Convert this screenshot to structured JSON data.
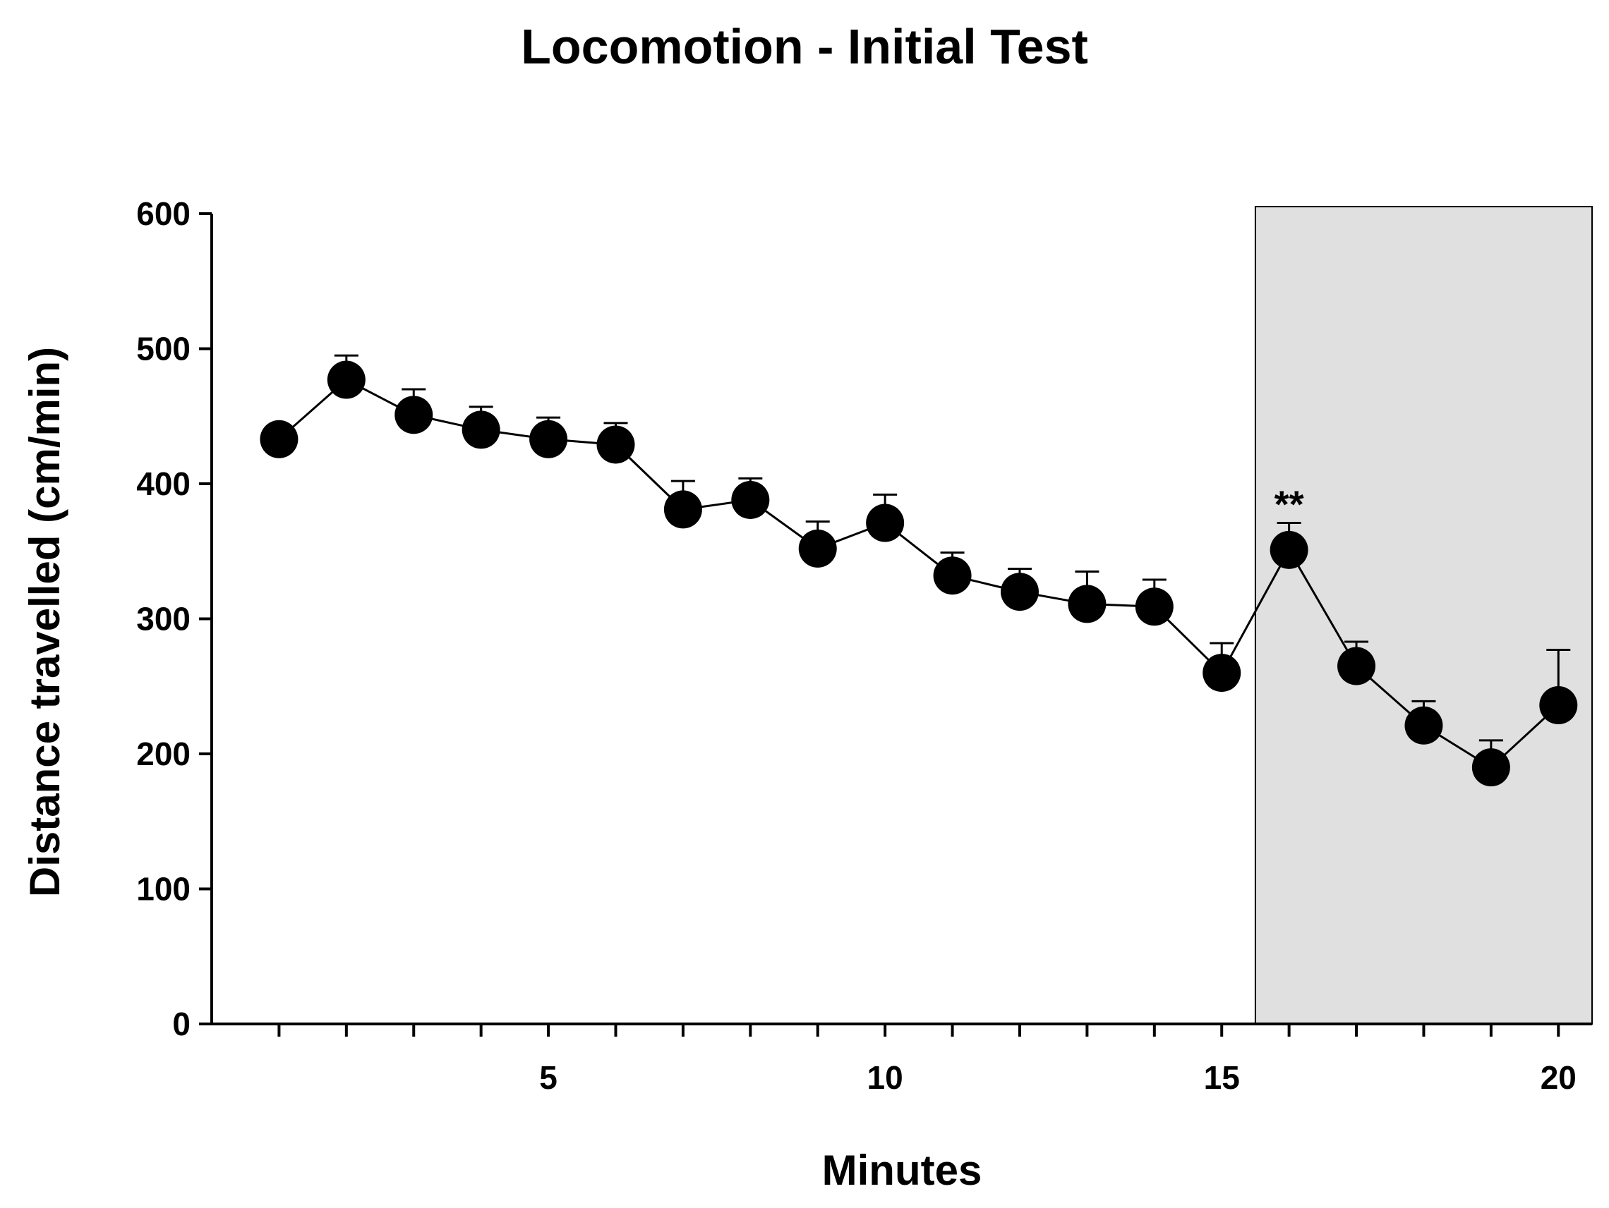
{
  "chart_data": {
    "type": "line",
    "title": "Locomotion -  Initial Test",
    "xlabel": "Minutes",
    "ylabel": "Distance travelled (cm/min)",
    "xlim": [
      0,
      20.5
    ],
    "ylim": [
      0,
      600
    ],
    "x_ticks": [
      1,
      2,
      3,
      4,
      5,
      6,
      7,
      8,
      9,
      10,
      11,
      12,
      13,
      14,
      15,
      16,
      17,
      18,
      19,
      20
    ],
    "x_tick_labels": [
      {
        "value": 5,
        "label": "5"
      },
      {
        "value": 10,
        "label": "10"
      },
      {
        "value": 15,
        "label": "15"
      },
      {
        "value": 20,
        "label": "20"
      }
    ],
    "y_ticks": [
      0,
      100,
      200,
      300,
      400,
      500,
      600
    ],
    "y_tick_labels": [
      "0",
      "100",
      "200",
      "300",
      "400",
      "500",
      "600"
    ],
    "grid": false,
    "series": [
      {
        "name": "Distance travelled",
        "color": "#000000",
        "x": [
          1,
          2,
          3,
          4,
          5,
          6,
          7,
          8,
          9,
          10,
          11,
          12,
          13,
          14,
          15,
          16,
          17,
          18,
          19,
          20
        ],
        "values": [
          433,
          477,
          451,
          440,
          433,
          429,
          381,
          388,
          352,
          371,
          332,
          320,
          311,
          309,
          260,
          351,
          265,
          221,
          190,
          236
        ],
        "error": [
          0,
          18,
          19,
          17,
          16,
          16,
          21,
          16,
          20,
          21,
          17,
          17,
          24,
          20,
          22,
          20,
          18,
          18,
          20,
          41
        ]
      }
    ],
    "shaded_region": {
      "x_start": 15.5,
      "x_end": 20.5,
      "color": "#e0e0e0"
    },
    "annotations": [
      {
        "x": 16,
        "y": 371,
        "text": "**"
      }
    ]
  }
}
